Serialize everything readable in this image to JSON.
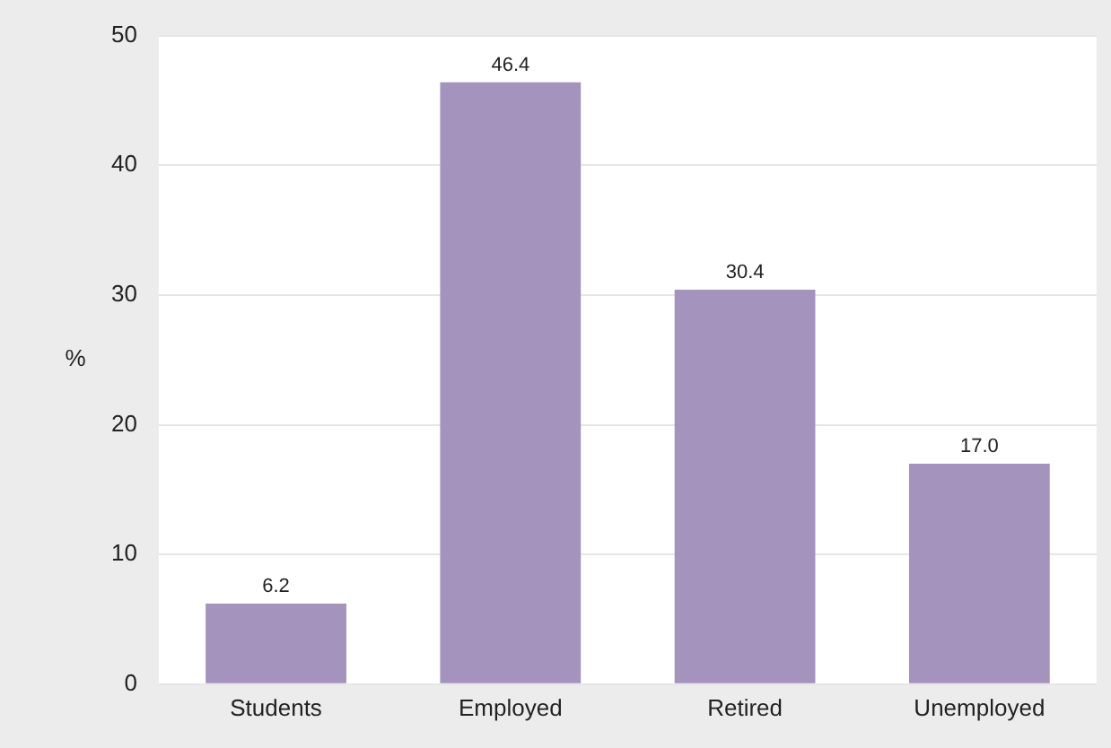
{
  "chart_data": {
    "type": "bar",
    "ylabel": "%",
    "categories": [
      "Students",
      "Employed",
      "Retired",
      "Unemployed"
    ],
    "series": [
      {
        "color": "#a393bd",
        "values": [
          6.2,
          46.4,
          30.4,
          17.0
        ]
      }
    ],
    "value_labels": [
      "6.2",
      "46.4",
      "30.4",
      "17.0"
    ],
    "ylim": [
      0,
      50
    ],
    "yticks": [
      0,
      10,
      20,
      30,
      40,
      50
    ],
    "grid": "y",
    "legend": false
  }
}
